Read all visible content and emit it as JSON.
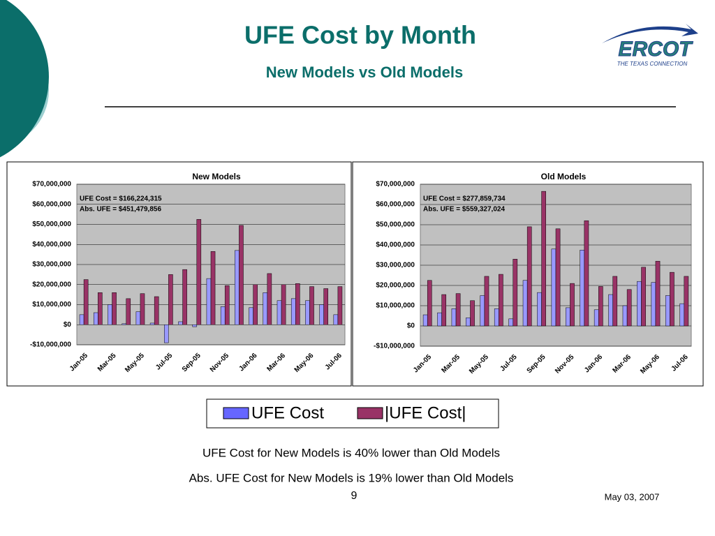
{
  "slide": {
    "title": "UFE Cost by Month",
    "subtitle": "New Models vs Old Models",
    "logo": "ERCOT",
    "logo_tagline": "THE TEXAS CONNECTION",
    "notes": [
      "UFE Cost for New Models is 40% lower than Old Models",
      "Abs. UFE Cost for New Models is 19% lower than Old Models"
    ],
    "page": "9",
    "date": "May 03, 2007"
  },
  "chart_data": [
    {
      "type": "bar",
      "title": "New Models",
      "categories": [
        "Jan-05",
        null,
        "Mar-05",
        null,
        "May-05",
        null,
        "Jul-05",
        null,
        "Sep-05",
        null,
        "Nov-05",
        null,
        "Jan-06",
        null,
        "Mar-06",
        null,
        "May-06",
        null,
        "Jul-06"
      ],
      "series": [
        {
          "name": "UFE Cost",
          "color": "#9999ff",
          "values": [
            5000000,
            6000000,
            10000000,
            500000,
            6500000,
            800000,
            -9000000,
            1500000,
            -1000000,
            23000000,
            9000000,
            37000000,
            8500000,
            16000000,
            12000000,
            13000000,
            12000000,
            10000000,
            5000000
          ]
        },
        {
          "name": "|UFE Cost|",
          "color": "#993366",
          "values": [
            22500000,
            16000000,
            16000000,
            13000000,
            15500000,
            14000000,
            25000000,
            27500000,
            52500000,
            36500000,
            19500000,
            49500000,
            20000000,
            25500000,
            20000000,
            20500000,
            19000000,
            18000000,
            19000000
          ]
        }
      ],
      "annotations": [
        "UFE Cost = $166,224,315",
        "Abs. UFE  = $451,479,856"
      ],
      "ylim": [
        -10000000,
        70000000
      ],
      "yticks": [
        {
          "value": -10000000,
          "label": "-$10,000,000"
        },
        {
          "value": 0,
          "label": "$0"
        },
        {
          "value": 10000000,
          "label": "$10,000,000"
        },
        {
          "value": 20000000,
          "label": "$20,000,000"
        },
        {
          "value": 30000000,
          "label": "$30,000,000"
        },
        {
          "value": 40000000,
          "label": "$40,000,000"
        },
        {
          "value": 50000000,
          "label": "$50,000,000"
        },
        {
          "value": 60000000,
          "label": "$60,000,000"
        },
        {
          "value": 70000000,
          "label": "$70,000,000"
        }
      ],
      "grid": true
    },
    {
      "type": "bar",
      "title": "Old Models",
      "categories": [
        "Jan-05",
        null,
        "Mar-05",
        null,
        "May-05",
        null,
        "Jul-05",
        null,
        "Sep-05",
        null,
        "Nov-05",
        null,
        "Jan-06",
        null,
        "Mar-06",
        null,
        "May-06",
        null,
        "Jul-06"
      ],
      "series": [
        {
          "color": "#9999ff",
          "values": [
            5500000,
            6500000,
            8500000,
            4000000,
            15000000,
            8500000,
            3500000,
            22500000,
            16500000,
            38000000,
            9000000,
            37500000,
            8000000,
            15500000,
            10000000,
            22000000,
            21500000,
            15000000,
            11000000
          ]
        },
        {
          "color": "#993366",
          "values": [
            22500000,
            15500000,
            16000000,
            12500000,
            24500000,
            25500000,
            33000000,
            49000000,
            66500000,
            48000000,
            21000000,
            52000000,
            19500000,
            24500000,
            18000000,
            29000000,
            32000000,
            26500000,
            24500000
          ]
        }
      ],
      "annotations": [
        "UFE Cost = $277,859,734",
        "Abs. UFE  = $559,327,024"
      ],
      "ylim": [
        -10000000,
        70000000
      ],
      "yticks": [
        {
          "value": -10000000,
          "label": "-$10,000,000"
        },
        {
          "value": 0,
          "label": "$0"
        },
        {
          "value": 10000000,
          "label": "$10,000,000"
        },
        {
          "value": 20000000,
          "label": "$20,000,000"
        },
        {
          "value": 30000000,
          "label": "$30,000,000"
        },
        {
          "value": 40000000,
          "label": "$40,000,000"
        },
        {
          "value": 50000000,
          "label": "$50,000,000"
        },
        {
          "value": 60000000,
          "label": "$60,000,000"
        },
        {
          "value": 70000000,
          "label": "$70,000,000"
        }
      ],
      "grid": true
    }
  ]
}
